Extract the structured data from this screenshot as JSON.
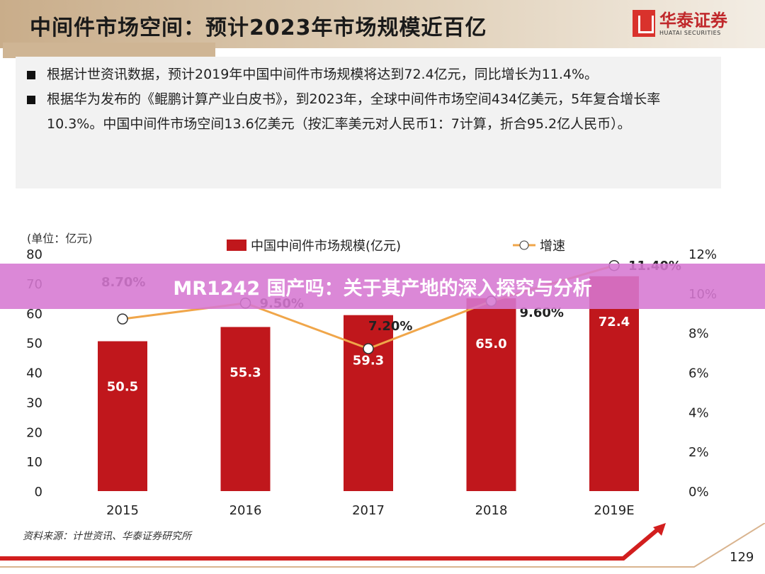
{
  "header": {
    "title": "中间件市场空间：预计2023年市场规模近百亿",
    "logo_cn": "华泰证券",
    "logo_en": "HUATAI SECURITIES"
  },
  "bullets": [
    "根据计世资讯数据，预计2019年中国中间件市场规模将达到72.4亿元，同比增长为11.4%。",
    "根据华为发布的《鲲鹏计算产业白皮书》，到2023年，全球中间件市场空间434亿美元，5年复合增长率10.3%。中国中间件市场空间13.6亿美元（按汇率美元对人民币1：7计算，折合95.2亿人民币）。"
  ],
  "banner": "MR1242 国产吗：关于其产地的深入探究与分析",
  "chart_data": {
    "type": "bar+line",
    "unit_label": "(单位：亿元)",
    "categories": [
      "2015",
      "2016",
      "2017",
      "2018",
      "2019E"
    ],
    "series": [
      {
        "name": "中国中间件市场规模(亿元)",
        "type": "bar",
        "axis": "left",
        "values": [
          50.5,
          55.3,
          59.3,
          65.0,
          72.4
        ],
        "labels": [
          "50.5",
          "55.3",
          "59.3",
          "65.0",
          "72.4"
        ],
        "color": "#c0171c"
      },
      {
        "name": "增速",
        "type": "line",
        "axis": "right",
        "values": [
          8.7,
          9.5,
          7.2,
          9.6,
          11.4
        ],
        "labels": [
          "8.70%",
          "9.50%",
          "7.20%",
          "9.60%",
          "11.40%"
        ],
        "color": "#f0a64a"
      }
    ],
    "left_axis": {
      "range": [
        0,
        80
      ],
      "ticks": [
        "0",
        "10",
        "20",
        "30",
        "40",
        "50",
        "60",
        "70",
        "80"
      ]
    },
    "right_axis": {
      "range": [
        0,
        12
      ],
      "ticks": [
        "0%",
        "2%",
        "4%",
        "6%",
        "8%",
        "10%",
        "12%"
      ]
    },
    "legend": "top",
    "grid": false
  },
  "footer": {
    "source": "资料来源：计世资讯、华泰证券研究所",
    "page": "129",
    "accent": "#d21e1e"
  }
}
